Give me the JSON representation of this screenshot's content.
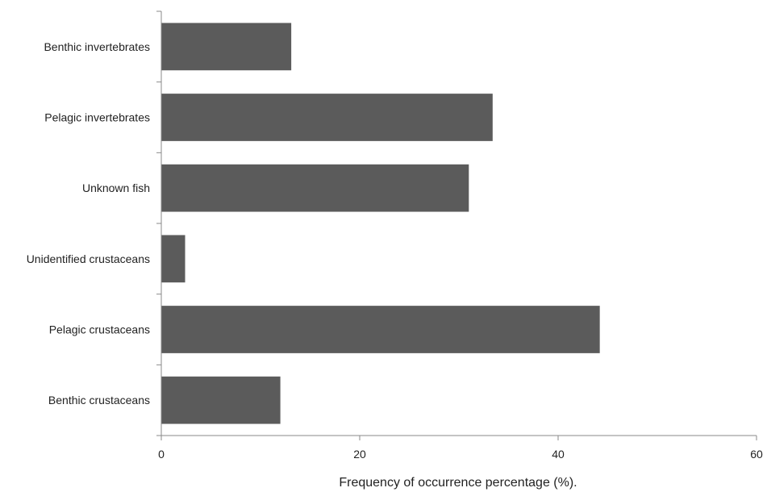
{
  "chart_data": {
    "type": "bar",
    "orientation": "horizontal",
    "categories": [
      "Benthic invertebrates",
      "Pelagic invertebrates",
      "Unknown fish",
      "Unidentified crustaceans",
      "Pelagic crustaceans",
      "Benthic crustaceans"
    ],
    "values": [
      13.1,
      33.4,
      31.0,
      2.4,
      44.2,
      12.0
    ],
    "xlabel": "Frequency of occurrence percentage (%).",
    "ylabel": "",
    "xlim": [
      0,
      60
    ],
    "xticks": [
      "0",
      "20",
      "40",
      "60"
    ],
    "grid": false,
    "legend": "none",
    "colors": {
      "bar": "#5b5b5b",
      "axis": "#8a8a8a",
      "text": "#222222"
    }
  }
}
